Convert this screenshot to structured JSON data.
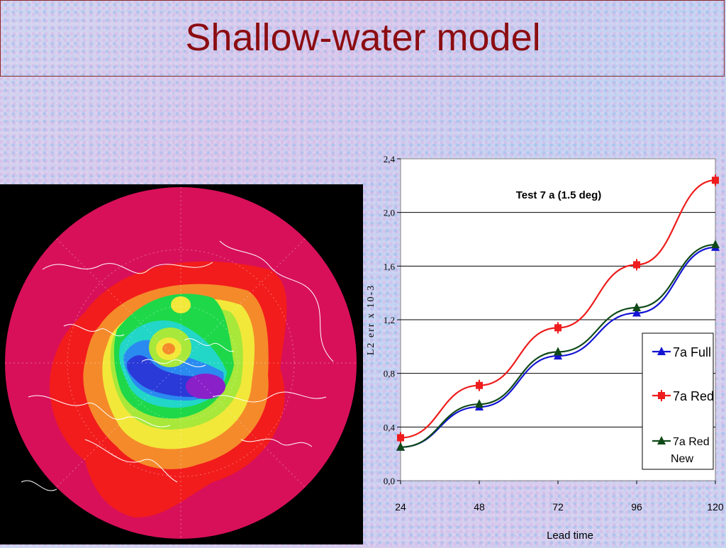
{
  "slide": {
    "title": "Shallow-water model"
  },
  "map": {
    "colors": {
      "outer": "#d8105a",
      "red": "#f21c1c",
      "orange": "#f58a2b",
      "yellow": "#f2e83a",
      "lime": "#a8e83a",
      "green": "#1ed84a",
      "cyan": "#22d6c8",
      "blue": "#2a8af0",
      "deepblue": "#2a3ad8",
      "purple": "#8a20c8",
      "coast": "#ffffff"
    }
  },
  "chart_data": {
    "type": "line",
    "title": "Test 7 a (1.5 deg)",
    "xlabel": "Lead time",
    "ylabel": "L2 err x 10-3",
    "x": [
      24,
      48,
      72,
      96,
      120
    ],
    "xticks": [
      "24",
      "48",
      "72",
      "96",
      "120"
    ],
    "ylim": [
      0,
      2.4
    ],
    "yticks": [
      "0,0",
      "0,4",
      "0,8",
      "1,2",
      "1,6",
      "2,0",
      "2,4"
    ],
    "grid": true,
    "legend_position": "right",
    "series": [
      {
        "name": "7a Full",
        "values": [
          0.25,
          0.55,
          0.93,
          1.25,
          1.74
        ],
        "color": "#1414d2",
        "marker": "triangle"
      },
      {
        "name": "7a Red",
        "values": [
          0.32,
          0.71,
          1.14,
          1.61,
          2.24
        ],
        "color": "#ee1c1c",
        "marker": "square"
      },
      {
        "name": "7a Red New",
        "values": [
          0.25,
          0.57,
          0.96,
          1.29,
          1.76
        ],
        "color": "#0f4a18",
        "marker": "triangle"
      }
    ]
  }
}
